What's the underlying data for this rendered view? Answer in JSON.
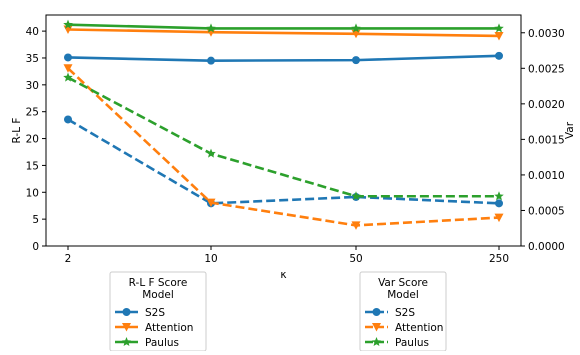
{
  "chart_data": {
    "type": "line",
    "categories": [
      "2",
      "10",
      "50",
      "250"
    ],
    "xlabel": "κ",
    "left_axis": {
      "label": "R-L F",
      "ylim": [
        0,
        43
      ],
      "ticks": [
        0,
        5,
        10,
        15,
        20,
        25,
        30,
        35,
        40
      ]
    },
    "right_axis": {
      "label": "Var",
      "ylim": [
        0,
        0.00325
      ],
      "ticks": [
        "0.0000",
        "0.0005",
        "0.0010",
        "0.0015",
        "0.0020",
        "0.0025",
        "0.0030"
      ]
    },
    "series": [
      {
        "name": "S2S",
        "group": "R-L F Score",
        "axis": "left",
        "style": "solid",
        "color": "#1f77b4",
        "marker": "circle",
        "values": [
          35.1,
          34.5,
          34.6,
          35.4
        ]
      },
      {
        "name": "Attention",
        "group": "R-L F Score",
        "axis": "left",
        "style": "solid",
        "color": "#ff7f0e",
        "marker": "triangle-down",
        "values": [
          40.3,
          39.8,
          39.5,
          39.1
        ]
      },
      {
        "name": "Paulus",
        "group": "R-L F Score",
        "axis": "left",
        "style": "solid",
        "color": "#2ca02c",
        "marker": "star",
        "values": [
          41.2,
          40.5,
          40.5,
          40.5
        ]
      },
      {
        "name": "S2S",
        "group": "Var Score",
        "axis": "right",
        "style": "dashed",
        "color": "#1f77b4",
        "marker": "circle",
        "values": [
          0.00178,
          0.0006,
          0.00069,
          0.0006
        ]
      },
      {
        "name": "Attention",
        "group": "Var Score",
        "axis": "right",
        "style": "dashed",
        "color": "#ff7f0e",
        "marker": "triangle-down",
        "values": [
          0.0025,
          0.00061,
          0.00029,
          0.0004
        ]
      },
      {
        "name": "Paulus",
        "group": "Var Score",
        "axis": "right",
        "style": "dashed",
        "color": "#2ca02c",
        "marker": "star",
        "values": [
          0.00237,
          0.0013,
          0.0007,
          0.0007
        ]
      }
    ],
    "legends": [
      {
        "title": "R-L F Score\nModel",
        "entries": [
          "S2S",
          "Attention",
          "Paulus"
        ],
        "style": "solid",
        "placement": "below-left"
      },
      {
        "title": "Var Score\nModel",
        "entries": [
          "S2S",
          "Attention",
          "Paulus"
        ],
        "style": "dashed",
        "placement": "below-right"
      }
    ]
  }
}
